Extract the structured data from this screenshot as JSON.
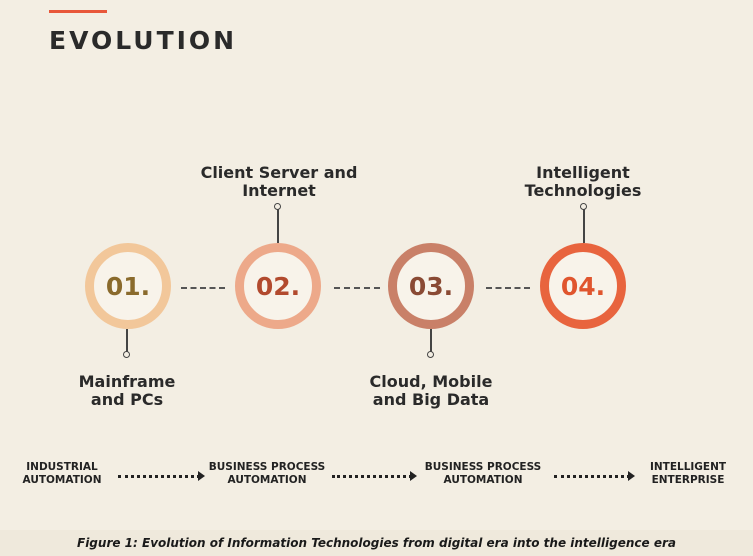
{
  "heading": "EVOLUTION",
  "colors": {
    "accent": "#e8573a",
    "circle1": "#f2c79a",
    "circle2": "#eda98a",
    "circle3": "#c98068",
    "circle4": "#e8643e",
    "num1": "#8a6a2c",
    "num2": "#b24a2e",
    "num3": "#8a4a34",
    "num4": "#e0552e"
  },
  "stages": [
    {
      "number": "01.",
      "label_line1": "Mainframe",
      "label_line2": "and PCs"
    },
    {
      "number": "02.",
      "label_line1": "Client Server and",
      "label_line2": "Internet"
    },
    {
      "number": "03.",
      "label_line1": "Cloud, Mobile",
      "label_line2": "and Big Data"
    },
    {
      "number": "04.",
      "label_line1": "Intelligent",
      "label_line2": "Technologies"
    }
  ],
  "flow": [
    {
      "line1": "INDUSTRIAL",
      "line2": "AUTOMATION"
    },
    {
      "line1": "BUSINESS PROCESS",
      "line2": "AUTOMATION"
    },
    {
      "line1": "BUSINESS PROCESS",
      "line2": "AUTOMATION"
    },
    {
      "line1": "INTELLIGENT",
      "line2": "ENTERPRISE"
    }
  ],
  "caption": "Figure 1: Evolution of Information Technologies from digital era into the intelligence era"
}
